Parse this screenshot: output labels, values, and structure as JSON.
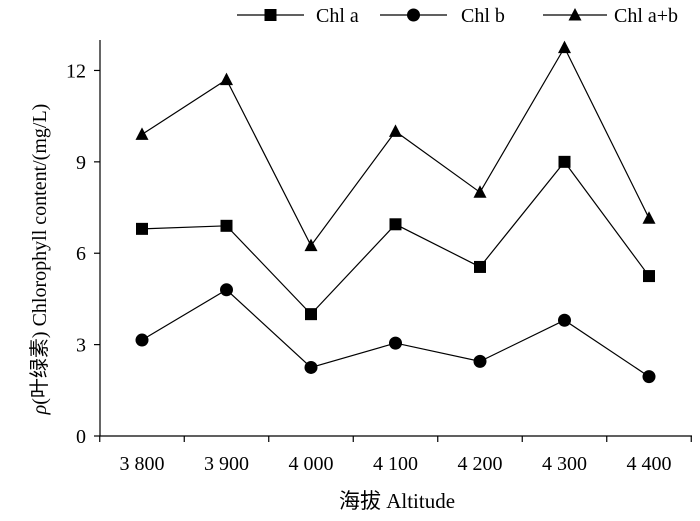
{
  "chart_data": {
    "type": "line",
    "title": "",
    "xlabel": "海拔 Altitude",
    "ylabel_prefix": "ρ",
    "ylabel": "(叶绿素) Chlorophyll content/(mg/L)",
    "categories": [
      "3 800",
      "3 900",
      "4 000",
      "4 100",
      "4 200",
      "4 300",
      "4 400"
    ],
    "ylim": [
      0,
      13
    ],
    "yticks": [
      0,
      3,
      6,
      9,
      12
    ],
    "grid": false,
    "legend_position": "top",
    "series": [
      {
        "name": "Chl a",
        "marker": "square",
        "values": [
          6.8,
          6.9,
          4.0,
          6.95,
          5.55,
          9.0,
          5.25
        ]
      },
      {
        "name": "Chl b",
        "marker": "circle",
        "values": [
          3.15,
          4.8,
          2.25,
          3.05,
          2.45,
          3.8,
          1.95
        ]
      },
      {
        "name": "Chl a+b",
        "marker": "triangle",
        "values": [
          9.9,
          11.7,
          6.25,
          10.0,
          8.0,
          12.75,
          7.15
        ]
      }
    ],
    "colors": {
      "line": "#000000",
      "axis": "#000000"
    }
  }
}
